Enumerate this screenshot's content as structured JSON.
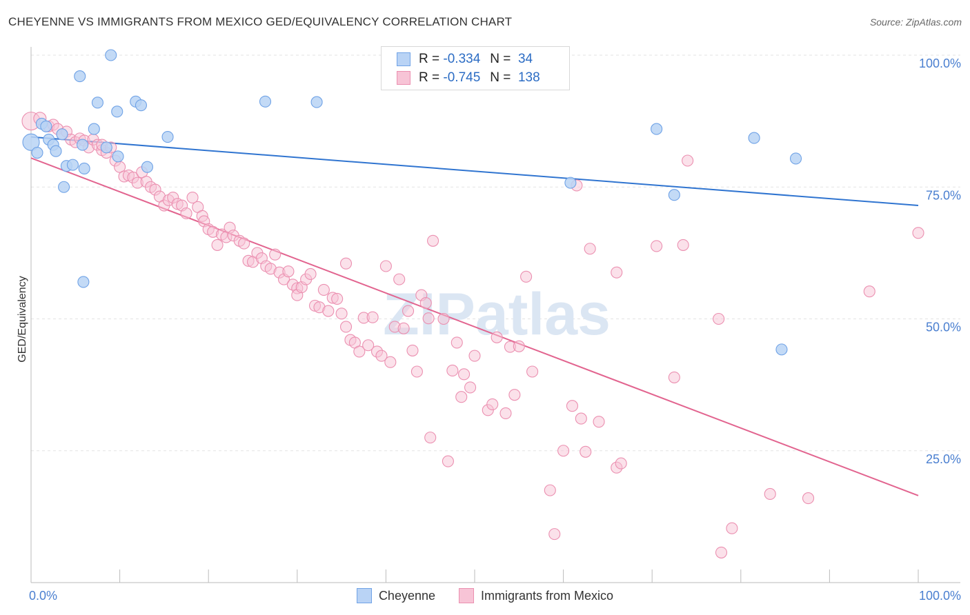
{
  "title": "CHEYENNE VS IMMIGRANTS FROM MEXICO GED/EQUIVALENCY CORRELATION CHART",
  "source": "Source: ZipAtlas.com",
  "watermark": "ZIPatlas",
  "legend": {
    "r_label": "R =",
    "n_label": "N =",
    "rows": [
      {
        "r": "-0.334",
        "n": "34"
      },
      {
        "r": "-0.745",
        "n": "138"
      }
    ]
  },
  "chart_data": {
    "type": "scatter",
    "ylabel": "GED/Equivalency",
    "x_tick_labels": [
      "0.0%",
      "100.0%"
    ],
    "y_tick_labels": [
      "100.0%",
      "75.0%",
      "50.0%",
      "25.0%"
    ],
    "y_tick_values": [
      100,
      75,
      50,
      25
    ],
    "xlim": [
      0,
      100
    ],
    "ylim": [
      0,
      102
    ],
    "grid": true,
    "legend_position": "bottom",
    "series": [
      {
        "name": "Cheyenne",
        "color": "#6fa2e6",
        "fill": "#b9d3f5",
        "trend": {
          "x": [
            0,
            100
          ],
          "y": [
            84.5,
            71.5
          ],
          "color": "#2f74d0"
        },
        "points": [
          [
            0,
            83.5,
            20
          ],
          [
            0.7,
            81.5,
            12
          ],
          [
            1.2,
            87,
            12
          ],
          [
            1.7,
            86.5,
            12
          ],
          [
            2,
            84,
            12
          ],
          [
            2.5,
            83,
            12
          ],
          [
            2.8,
            81.8,
            12
          ],
          [
            3.5,
            85,
            12
          ],
          [
            3.7,
            75,
            12
          ],
          [
            4,
            79,
            12
          ],
          [
            4.7,
            79.2,
            12
          ],
          [
            5.8,
            83,
            12
          ],
          [
            5.5,
            96,
            12
          ],
          [
            6,
            78.5,
            12
          ],
          [
            5.9,
            57,
            12
          ],
          [
            7.1,
            86,
            12
          ],
          [
            7.5,
            91,
            12
          ],
          [
            8.5,
            82.5,
            12
          ],
          [
            9,
            100,
            12
          ],
          [
            9.7,
            89.3,
            12
          ],
          [
            9.8,
            80.8,
            12
          ],
          [
            11.8,
            91.2,
            12
          ],
          [
            12.4,
            90.5,
            12
          ],
          [
            13.1,
            78.8,
            12
          ],
          [
            15.4,
            84.5,
            12
          ],
          [
            26.4,
            91.2,
            12
          ],
          [
            32.2,
            91.1,
            12
          ],
          [
            60.8,
            75.8,
            12
          ],
          [
            70.5,
            86,
            12
          ],
          [
            72.5,
            73.5,
            12
          ],
          [
            81.5,
            84.3,
            12
          ],
          [
            84.6,
            44.2,
            12
          ],
          [
            86.2,
            80.4,
            12
          ]
        ]
      },
      {
        "name": "Immigrants from Mexico",
        "color": "#eb8fb0",
        "fill": "#f7c4d6",
        "trend": {
          "x": [
            0,
            100
          ],
          "y": [
            80.5,
            16.5
          ],
          "color": "#e2648f"
        },
        "points": [
          [
            0,
            87.5,
            22
          ],
          [
            1,
            88,
            14
          ],
          [
            2,
            86.5,
            12
          ],
          [
            2.5,
            86.8,
            12
          ],
          [
            3,
            86,
            12
          ],
          [
            3.5,
            85,
            12
          ],
          [
            4,
            85.5,
            12
          ],
          [
            4.5,
            84,
            12
          ],
          [
            5,
            83.5,
            12
          ],
          [
            5.5,
            84.2,
            12
          ],
          [
            6,
            83.8,
            12
          ],
          [
            6.5,
            82.5,
            12
          ],
          [
            7,
            84,
            12
          ],
          [
            7.5,
            83,
            12
          ],
          [
            8,
            82,
            12
          ],
          [
            8.5,
            81.5,
            12
          ],
          [
            8,
            83,
            12
          ],
          [
            9,
            82.5,
            12
          ],
          [
            9.5,
            80,
            12
          ],
          [
            10,
            78.8,
            12
          ],
          [
            10.5,
            77,
            12
          ],
          [
            11,
            77.2,
            12
          ],
          [
            11.5,
            76.8,
            12
          ],
          [
            12,
            75.8,
            12
          ],
          [
            12.5,
            77.8,
            12
          ],
          [
            13,
            76,
            12
          ],
          [
            13.5,
            75,
            12
          ],
          [
            14,
            74.5,
            12
          ],
          [
            14.5,
            73.2,
            12
          ],
          [
            15,
            71.5,
            12
          ],
          [
            15.5,
            72.5,
            12
          ],
          [
            16,
            73,
            12
          ],
          [
            16.5,
            71.8,
            12
          ],
          [
            17,
            71.5,
            12
          ],
          [
            17.5,
            70,
            12
          ],
          [
            18.2,
            73,
            12
          ],
          [
            18.8,
            71.2,
            12
          ],
          [
            19.3,
            69.5,
            12
          ],
          [
            19.5,
            68.5,
            12
          ],
          [
            20,
            67,
            12
          ],
          [
            20.5,
            66.5,
            12
          ],
          [
            21,
            64,
            12
          ],
          [
            21.5,
            66,
            12
          ],
          [
            22,
            65.5,
            12
          ],
          [
            22.4,
            67.3,
            12
          ],
          [
            22.8,
            65.8,
            12
          ],
          [
            23.5,
            64.8,
            12
          ],
          [
            24,
            64.3,
            12
          ],
          [
            24.5,
            61,
            12
          ],
          [
            25,
            60.8,
            12
          ],
          [
            25.5,
            62.5,
            12
          ],
          [
            26,
            61.5,
            12
          ],
          [
            26.5,
            60,
            12
          ],
          [
            27,
            59.5,
            12
          ],
          [
            27.5,
            62.2,
            12
          ],
          [
            28,
            58.8,
            12
          ],
          [
            28.5,
            57.5,
            12
          ],
          [
            29,
            59,
            12
          ],
          [
            29.5,
            56.5,
            12
          ],
          [
            30,
            55.8,
            12
          ],
          [
            30,
            54.5,
            12
          ],
          [
            30.5,
            56,
            12
          ],
          [
            31,
            57.5,
            12
          ],
          [
            31.5,
            58.5,
            12
          ],
          [
            32,
            52.5,
            12
          ],
          [
            32.5,
            52.2,
            12
          ],
          [
            33,
            55.5,
            12
          ],
          [
            33.5,
            51.5,
            12
          ],
          [
            34,
            54,
            12
          ],
          [
            34.5,
            53.8,
            12
          ],
          [
            35,
            51,
            12
          ],
          [
            35.5,
            48.5,
            12
          ],
          [
            35.5,
            60.5,
            12
          ],
          [
            36,
            46,
            12
          ],
          [
            36.5,
            45.5,
            12
          ],
          [
            37,
            43.8,
            12
          ],
          [
            37.5,
            50.2,
            12
          ],
          [
            38,
            45,
            12
          ],
          [
            38.5,
            50.3,
            12
          ],
          [
            39,
            43.8,
            12
          ],
          [
            39.5,
            43,
            12
          ],
          [
            40,
            60,
            12
          ],
          [
            40.5,
            41.8,
            12
          ],
          [
            41,
            48.5,
            12
          ],
          [
            41.5,
            57.5,
            12
          ],
          [
            42,
            48.2,
            12
          ],
          [
            42.5,
            51.5,
            12
          ],
          [
            43,
            44,
            12
          ],
          [
            43.5,
            40,
            12
          ],
          [
            44,
            54.5,
            12
          ],
          [
            44.5,
            53,
            12
          ],
          [
            44.8,
            50.1,
            12
          ],
          [
            45,
            27.5,
            12
          ],
          [
            45.3,
            64.8,
            12
          ],
          [
            46.5,
            50,
            12
          ],
          [
            47,
            23,
            12
          ],
          [
            47.5,
            40.2,
            12
          ],
          [
            48,
            45.5,
            12
          ],
          [
            48.5,
            35.2,
            12
          ],
          [
            48.8,
            39.5,
            12
          ],
          [
            49.5,
            37,
            12
          ],
          [
            50,
            43,
            12
          ],
          [
            51.5,
            32.7,
            12
          ],
          [
            52,
            33.8,
            12
          ],
          [
            52.5,
            46.5,
            12
          ],
          [
            53,
            100,
            12
          ],
          [
            53.5,
            32.1,
            12
          ],
          [
            54,
            44.7,
            12
          ],
          [
            54.5,
            35.6,
            12
          ],
          [
            55,
            44.8,
            12
          ],
          [
            55.8,
            58,
            12
          ],
          [
            56.5,
            40,
            12
          ],
          [
            58.5,
            17.5,
            12
          ],
          [
            59,
            9.2,
            12
          ],
          [
            60,
            25,
            12
          ],
          [
            61,
            33.5,
            12
          ],
          [
            61.5,
            75.3,
            12
          ],
          [
            62,
            31.1,
            12
          ],
          [
            62.5,
            24.8,
            12
          ],
          [
            63,
            63.3,
            12
          ],
          [
            64,
            30.5,
            12
          ],
          [
            66,
            21.8,
            12
          ],
          [
            66.5,
            22.6,
            12
          ],
          [
            66,
            58.8,
            12
          ],
          [
            70.5,
            63.8,
            12
          ],
          [
            72.5,
            38.9,
            12
          ],
          [
            73.5,
            64,
            12
          ],
          [
            74,
            80,
            12
          ],
          [
            77.5,
            50,
            12
          ],
          [
            77.8,
            5.7,
            12
          ],
          [
            79,
            10.3,
            12
          ],
          [
            83.3,
            16.8,
            12
          ],
          [
            87.6,
            16,
            12
          ],
          [
            94.5,
            55.2,
            12
          ],
          [
            100,
            66.3,
            12
          ]
        ]
      }
    ]
  }
}
